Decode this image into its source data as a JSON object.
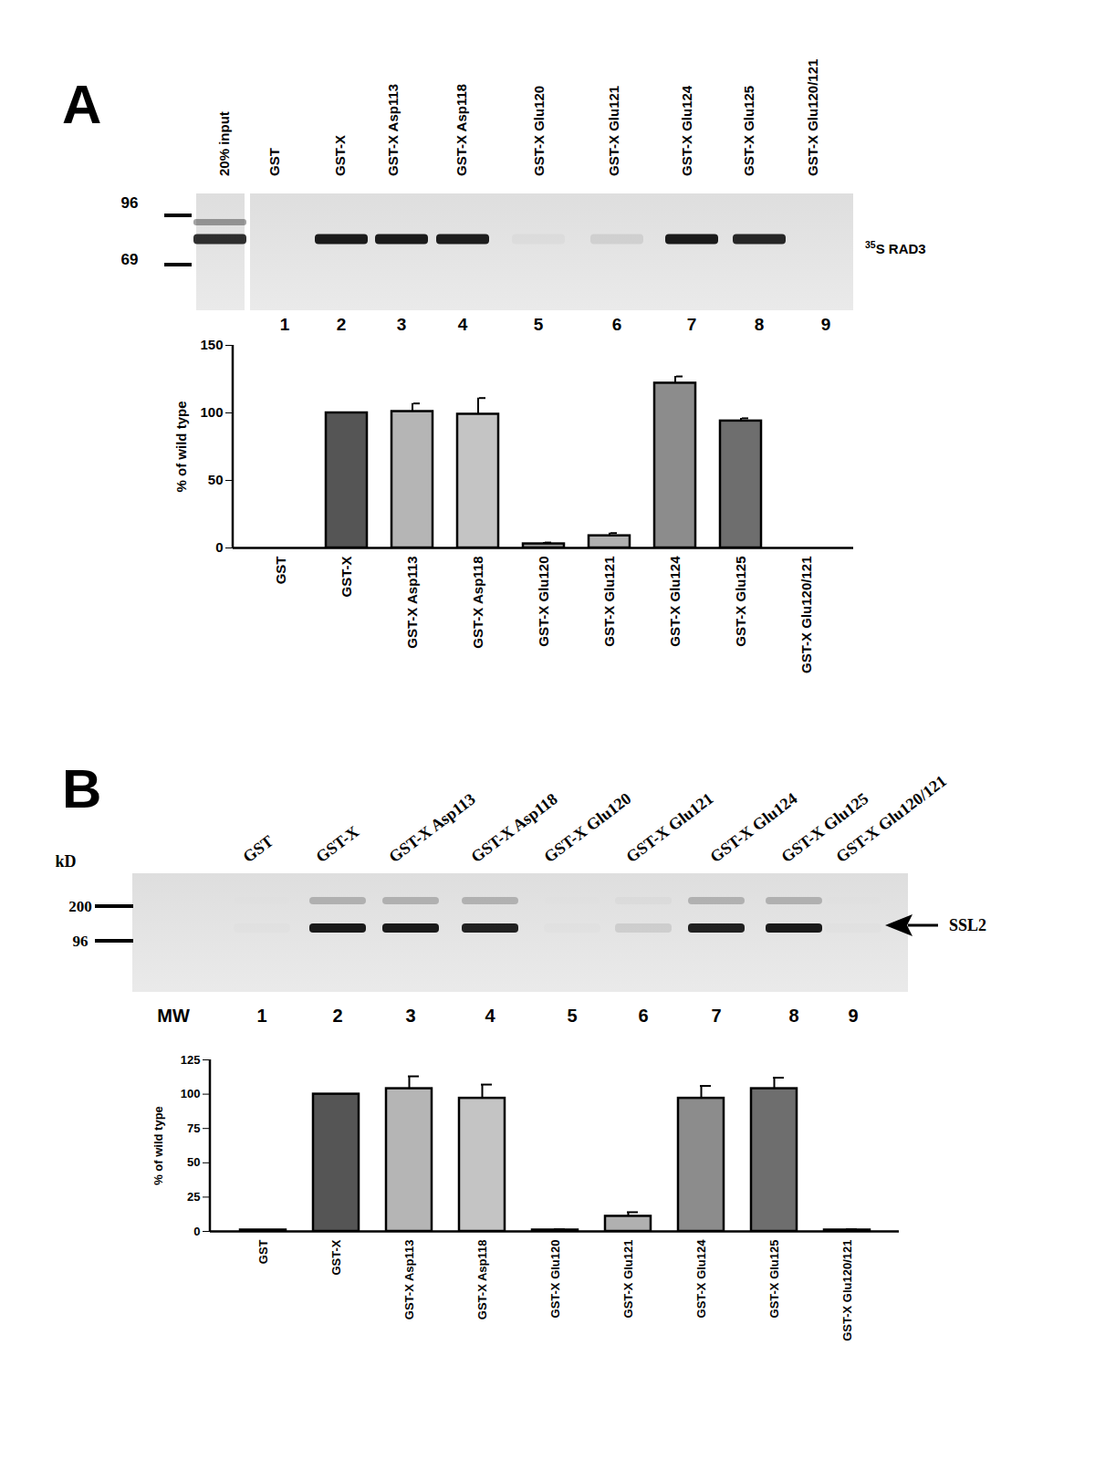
{
  "chart_data": [
    {
      "type": "bar",
      "y_label": "% of wild type",
      "categories": [
        "GST",
        "GST-X",
        "GST-X Asp113",
        "GST-X Asp118",
        "GST-X Glu120",
        "GST-X Glu121",
        "GST-X Glu124",
        "GST-X Glu125",
        "GST-X Glu120/121"
      ],
      "values": [
        0,
        100,
        101,
        99,
        3,
        9,
        122,
        94,
        0
      ],
      "errors": [
        0,
        0,
        6,
        12,
        1,
        2,
        5,
        2,
        0
      ],
      "colors": [
        "#777777",
        "#555555",
        "#b5b5b5",
        "#c4c4c4",
        "#9a9a9a",
        "#b0b0b0",
        "#8c8c8c",
        "#6e6e6e",
        "#777777"
      ],
      "ylim": [
        0,
        150
      ],
      "yticks": [
        0,
        50,
        100,
        150
      ],
      "grid": false
    },
    {
      "type": "bar",
      "y_label": "% of wild type",
      "categories": [
        "GST",
        "GST-X",
        "GST-X Asp113",
        "GST-X Asp118",
        "GST-X Glu120",
        "GST-X Glu121",
        "GST-X Glu124",
        "GST-X Glu125",
        "GST-X Glu120/121"
      ],
      "values": [
        1,
        100,
        104,
        97,
        1,
        11,
        97,
        104,
        1
      ],
      "errors": [
        0,
        0,
        9,
        10,
        0.5,
        3,
        9,
        8,
        0.5
      ],
      "colors": [
        "#777777",
        "#555555",
        "#b5b5b5",
        "#c4c4c4",
        "#9a9a9a",
        "#b0b0b0",
        "#8c8c8c",
        "#6e6e6e",
        "#777777"
      ],
      "ylim": [
        0,
        125
      ],
      "yticks": [
        0,
        25,
        50,
        75,
        100,
        125
      ],
      "grid": false
    }
  ],
  "gels": [
    {
      "panel": "A",
      "lanes": [
        {
          "label": "20% input",
          "number": null
        },
        {
          "label": "GST",
          "number": 1
        },
        {
          "label": "GST-X",
          "number": 2
        },
        {
          "label": "GST-X Asp113",
          "number": 3
        },
        {
          "label": "GST-X Asp118",
          "number": 4
        },
        {
          "label": "GST-X Glu120",
          "number": 5
        },
        {
          "label": "GST-X Glu121",
          "number": 6
        },
        {
          "label": "GST-X Glu124",
          "number": 7
        },
        {
          "label": "GST-X Glu125",
          "number": 8
        },
        {
          "label": "GST-X Glu120/121",
          "number": 9
        }
      ],
      "unit": null,
      "markers": [
        96,
        69
      ],
      "band_label": {
        "sup": "35",
        "text": "S RAD3"
      }
    },
    {
      "panel": "B",
      "lanes": [
        {
          "label": null,
          "number": "MW"
        },
        {
          "label": "GST",
          "number": 1
        },
        {
          "label": "GST-X",
          "number": 2
        },
        {
          "label": "GST-X Asp113",
          "number": 3
        },
        {
          "label": "GST-X Asp118",
          "number": 4
        },
        {
          "label": "GST-X Glu120",
          "number": 5
        },
        {
          "label": "GST-X Glu121",
          "number": 6
        },
        {
          "label": "GST-X Glu124",
          "number": 7
        },
        {
          "label": "GST-X Glu125",
          "number": 8
        },
        {
          "label": "GST-X Glu120/121",
          "number": 9
        }
      ],
      "unit": "kD",
      "markers": [
        200,
        96
      ],
      "band_label": {
        "sup": null,
        "text": "SSL2"
      }
    }
  ]
}
